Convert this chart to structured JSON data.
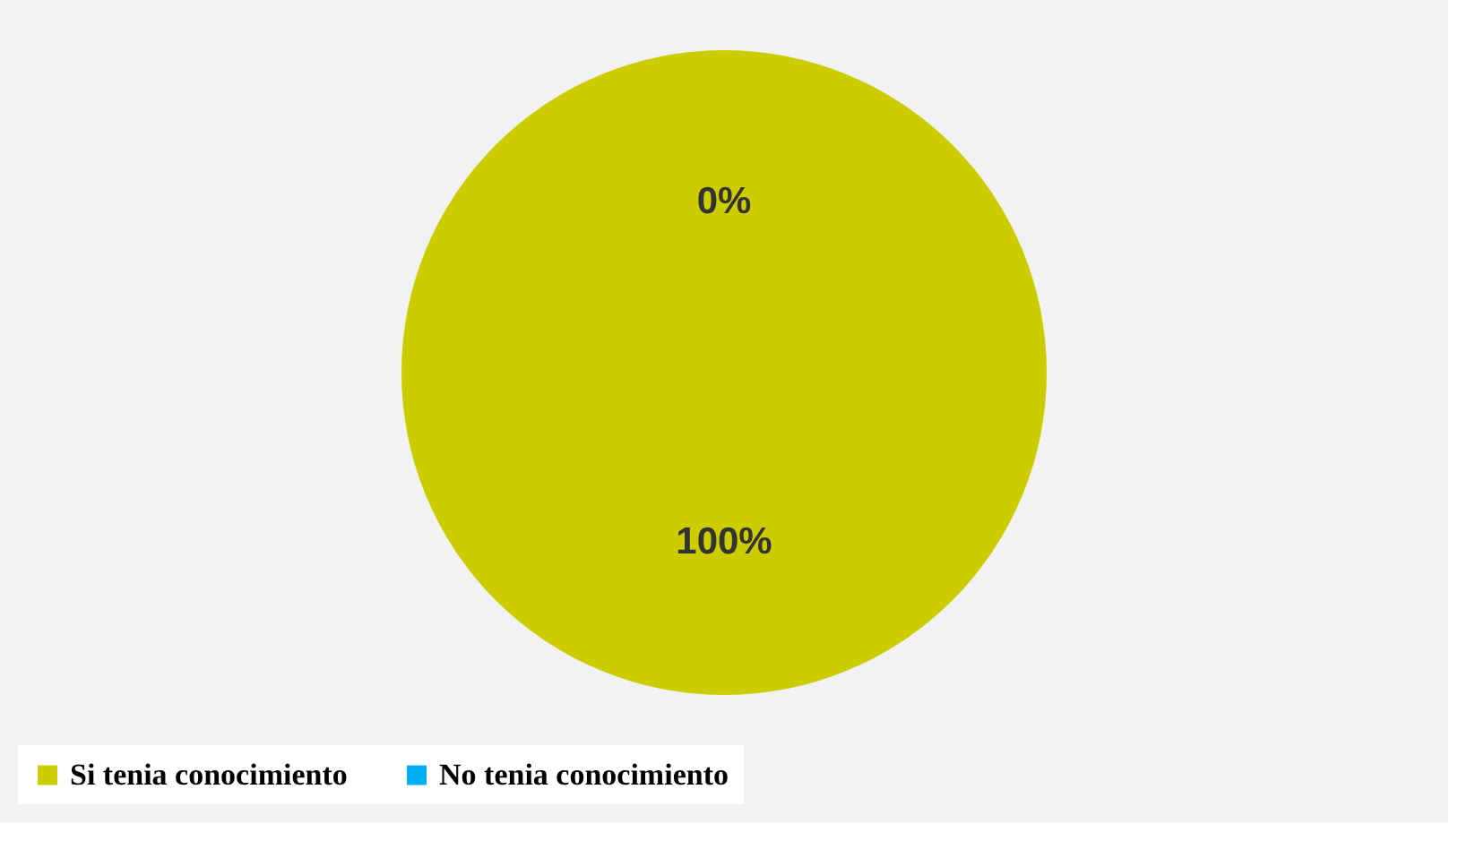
{
  "chart_data": {
    "type": "pie",
    "categories": [
      "Si tenia conocimiento",
      "No tenia conocimiento"
    ],
    "values": [
      100,
      0
    ],
    "colors": [
      "#cccc00",
      "#00b0f0"
    ],
    "value_labels": [
      "100%",
      "0%"
    ],
    "legend": "bottom"
  }
}
